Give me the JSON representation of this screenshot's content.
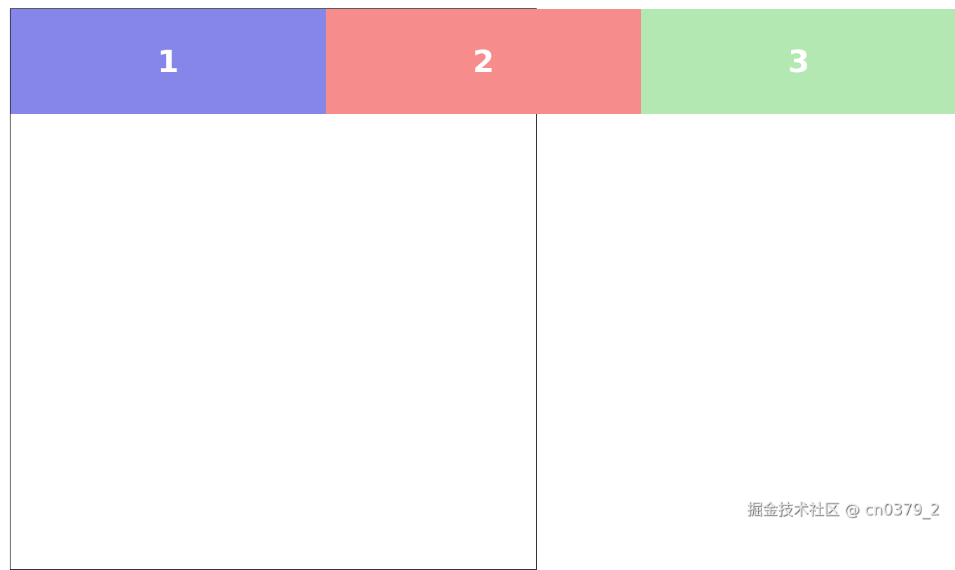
{
  "boxes": [
    {
      "label": "1",
      "color": "#8686ea"
    },
    {
      "label": "2",
      "color": "#f78c8c"
    },
    {
      "label": "3",
      "color": "#b3e8b3"
    }
  ],
  "watermark": "掘金技术社区 @ cn0379_2"
}
